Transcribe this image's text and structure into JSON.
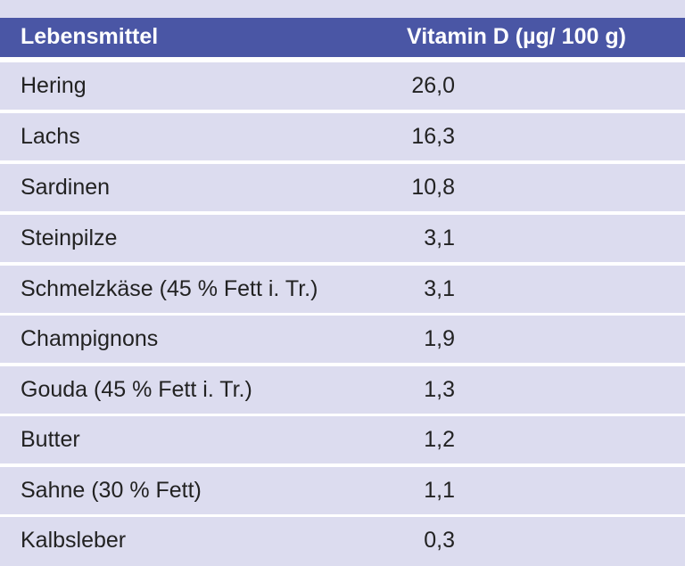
{
  "table": {
    "headers": {
      "food": "Lebensmittel",
      "vitamin": "Vitamin D (µg/ 100 g)"
    },
    "rows": [
      {
        "food": "Hering",
        "value": "26,0"
      },
      {
        "food": "Lachs",
        "value": "16,3"
      },
      {
        "food": "Sardinen",
        "value": "10,8"
      },
      {
        "food": "Steinpilze",
        "value": "3,1"
      },
      {
        "food": "Schmelzkäse (45 % Fett i. Tr.)",
        "value": "3,1"
      },
      {
        "food": "Champignons",
        "value": "1,9"
      },
      {
        "food": "Gouda (45 % Fett i. Tr.)",
        "value": "1,3"
      },
      {
        "food": "Butter",
        "value": "1,2"
      },
      {
        "food": "Sahne (30 % Fett)",
        "value": "1,1"
      },
      {
        "food": "Kalbsleber",
        "value": "0,3"
      }
    ]
  },
  "colors": {
    "header_bg": "#4a56a5",
    "row_bg": "#dcdcef",
    "separator": "#ffffff"
  }
}
